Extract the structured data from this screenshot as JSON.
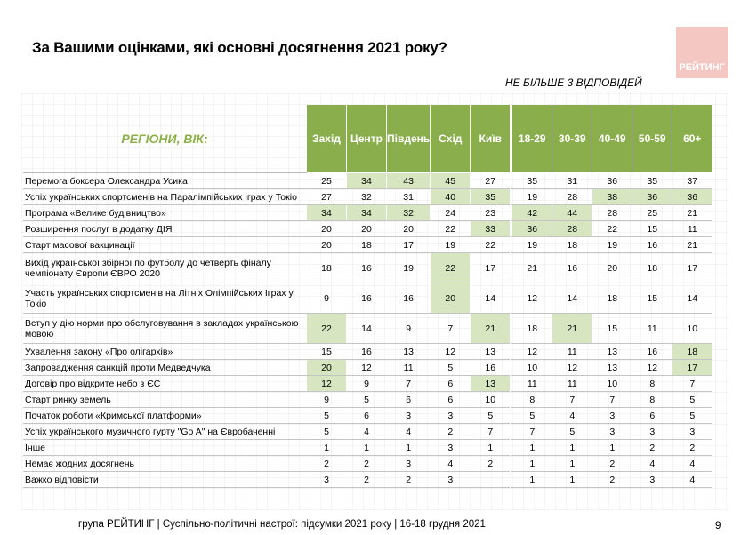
{
  "title": "За Вашими оцінками, які основні досягнення 2021 року?",
  "logo": {
    "text": "РЕЙТИНГ",
    "color": "#f4c7c3"
  },
  "note": "НЕ БІЛЬШЕ 3 ВІДПОВІДЕЙ",
  "table": {
    "header_label": "РЕГІОНИ, ВІК:",
    "region_columns": [
      "Захід",
      "Центр",
      "Південь",
      "Схід",
      "Київ"
    ],
    "age_columns": [
      "18-29",
      "30-39",
      "40-49",
      "50-59",
      "60+"
    ],
    "header_color": "#8aae4b",
    "highlight_color": "#d7e6c1",
    "rows": [
      {
        "label": "Перемога боксера Олександра Усика",
        "values": [
          "25",
          "34",
          "43",
          "45",
          "27",
          "35",
          "31",
          "36",
          "35",
          "37"
        ],
        "hl": [
          false,
          true,
          true,
          true,
          false,
          false,
          false,
          false,
          false,
          false
        ]
      },
      {
        "label": "Успіх українських спортсменів на Паралімпійських іграх у Токіо",
        "values": [
          "27",
          "32",
          "31",
          "40",
          "35",
          "19",
          "28",
          "38",
          "36",
          "36"
        ],
        "hl": [
          false,
          false,
          false,
          true,
          true,
          false,
          false,
          true,
          true,
          true
        ]
      },
      {
        "label": "Програма «Велике будівництво»",
        "values": [
          "34",
          "34",
          "32",
          "24",
          "23",
          "42",
          "44",
          "28",
          "25",
          "21"
        ],
        "hl": [
          true,
          true,
          true,
          false,
          false,
          true,
          true,
          false,
          false,
          false
        ]
      },
      {
        "label": "Розширення послуг в додатку ДІЯ",
        "values": [
          "20",
          "20",
          "20",
          "22",
          "33",
          "36",
          "28",
          "22",
          "15",
          "11"
        ],
        "hl": [
          false,
          false,
          false,
          false,
          true,
          true,
          true,
          false,
          false,
          false
        ]
      },
      {
        "label": "Старт масової вакцинації",
        "values": [
          "20",
          "18",
          "17",
          "19",
          "22",
          "19",
          "18",
          "19",
          "16",
          "21"
        ],
        "hl": [
          false,
          false,
          false,
          false,
          false,
          false,
          false,
          false,
          false,
          false
        ]
      },
      {
        "label": "Вихід української збірної по футболу до четверть фіналу чемпіонату Європи ЄВРО 2020",
        "values": [
          "18",
          "16",
          "19",
          "22",
          "17",
          "21",
          "16",
          "20",
          "18",
          "17"
        ],
        "hl": [
          false,
          false,
          false,
          true,
          false,
          false,
          false,
          false,
          false,
          false
        ],
        "tall": true
      },
      {
        "label": "Участь українських спортсменів на Літніх Олімпійських Іграх у Токіо",
        "values": [
          "9",
          "16",
          "16",
          "20",
          "14",
          "12",
          "14",
          "18",
          "15",
          "14"
        ],
        "hl": [
          false,
          false,
          false,
          true,
          false,
          false,
          false,
          false,
          false,
          false
        ],
        "tall": true
      },
      {
        "label": "Вступ у дію норми про обслуговування в закладах українською мовою",
        "values": [
          "22",
          "14",
          "9",
          "7",
          "21",
          "18",
          "21",
          "15",
          "11",
          "10"
        ],
        "hl": [
          true,
          false,
          false,
          false,
          true,
          false,
          true,
          false,
          false,
          false
        ],
        "tall": true
      },
      {
        "label": "Ухвалення закону «Про олігархів»",
        "values": [
          "15",
          "16",
          "13",
          "12",
          "13",
          "12",
          "11",
          "13",
          "16",
          "18"
        ],
        "hl": [
          false,
          false,
          false,
          false,
          false,
          false,
          false,
          false,
          false,
          true
        ]
      },
      {
        "label": "Запровадження санкцій проти Медведчука",
        "values": [
          "20",
          "12",
          "11",
          "5",
          "16",
          "10",
          "12",
          "13",
          "12",
          "17"
        ],
        "hl": [
          true,
          false,
          false,
          false,
          false,
          false,
          false,
          false,
          false,
          true
        ]
      },
      {
        "label": "Договір про відкрите небо з ЄС",
        "values": [
          "12",
          "9",
          "7",
          "6",
          "13",
          "11",
          "11",
          "10",
          "8",
          "7"
        ],
        "hl": [
          true,
          false,
          false,
          false,
          true,
          false,
          false,
          false,
          false,
          false
        ]
      },
      {
        "label": "Старт ринку земель",
        "values": [
          "9",
          "5",
          "6",
          "6",
          "10",
          "8",
          "7",
          "7",
          "8",
          "5"
        ],
        "hl": [
          false,
          false,
          false,
          false,
          false,
          false,
          false,
          false,
          false,
          false
        ]
      },
      {
        "label": "Початок роботи «Кримської платформи»",
        "values": [
          "5",
          "6",
          "3",
          "3",
          "5",
          "5",
          "4",
          "3",
          "6",
          "5"
        ],
        "hl": [
          false,
          false,
          false,
          false,
          false,
          false,
          false,
          false,
          false,
          false
        ]
      },
      {
        "label": "Успіх українського музичного гурту \"Go A\" на Євробаченні",
        "values": [
          "5",
          "4",
          "4",
          "2",
          "7",
          "7",
          "5",
          "3",
          "3",
          "3"
        ],
        "hl": [
          false,
          false,
          false,
          false,
          false,
          false,
          false,
          false,
          false,
          false
        ]
      },
      {
        "label": "Інше",
        "values": [
          "1",
          "1",
          "1",
          "3",
          "1",
          "1",
          "1",
          "1",
          "2",
          "2"
        ],
        "hl": [
          false,
          false,
          false,
          false,
          false,
          false,
          false,
          false,
          false,
          false
        ]
      },
      {
        "label": "Немає жодних досягнень",
        "values": [
          "2",
          "2",
          "3",
          "4",
          "2",
          "1",
          "1",
          "2",
          "4",
          "4"
        ],
        "hl": [
          false,
          false,
          false,
          false,
          false,
          false,
          false,
          false,
          false,
          false
        ]
      },
      {
        "label": "Важко відповісти",
        "values": [
          "3",
          "2",
          "2",
          "3",
          "",
          "1",
          "1",
          "2",
          "3",
          "4"
        ],
        "hl": [
          false,
          false,
          false,
          false,
          false,
          false,
          false,
          false,
          false,
          false
        ]
      }
    ]
  },
  "footer": "група РЕЙТИНГ | Суспільно-політичні настрої: підсумки 2021 року | 16-18 грудня 2021",
  "page_number": "9"
}
